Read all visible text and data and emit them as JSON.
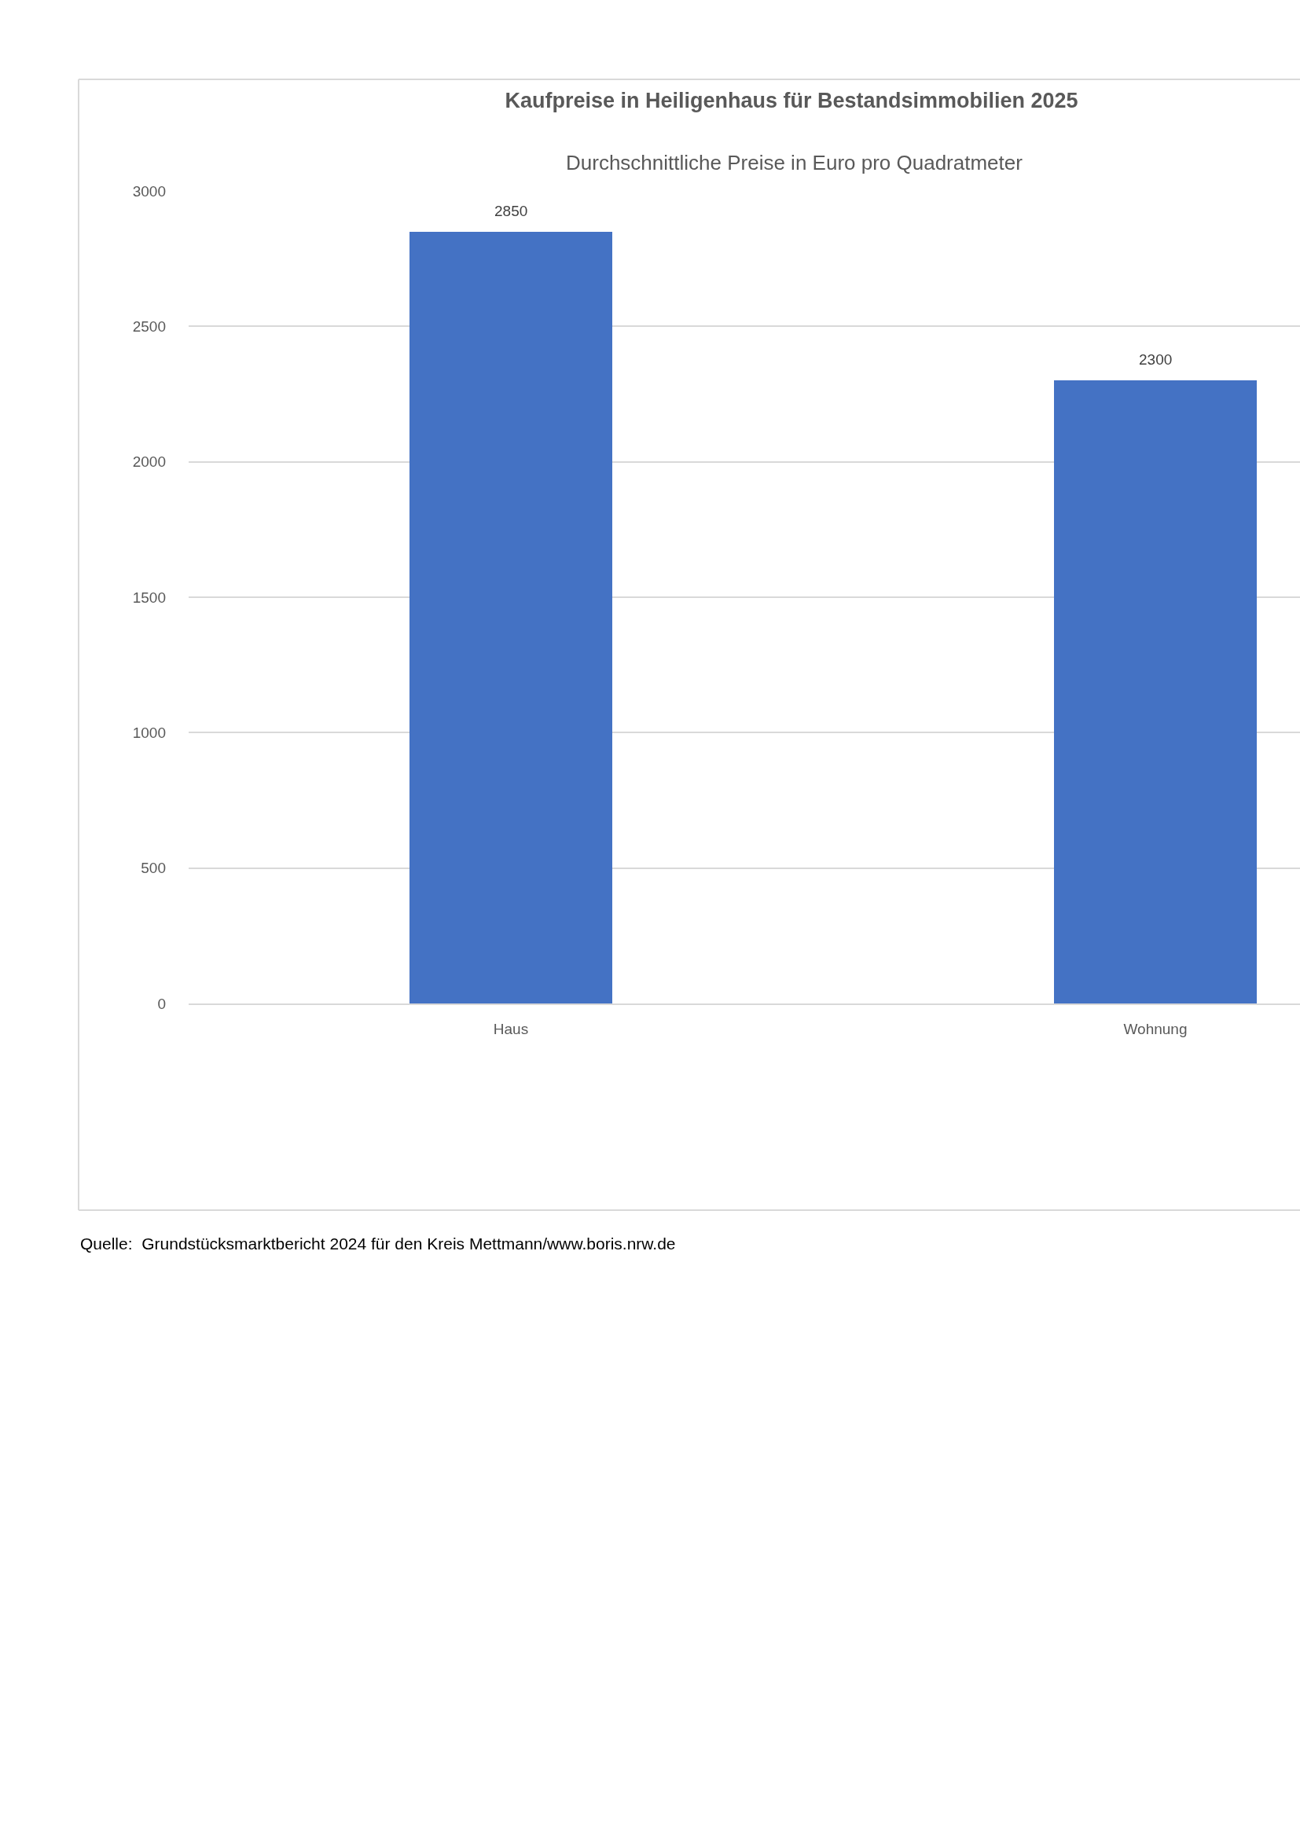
{
  "chart_data": {
    "type": "bar",
    "title": "Kaufpreise in Heiligenhaus für Bestandsimmobilien 2025",
    "subtitle": "Durchschnittliche Preise in Euro pro Quadratmeter",
    "categories": [
      "Haus",
      "Wohnung"
    ],
    "values": [
      2850,
      2300
    ],
    "color": "#4472c4",
    "ylim": [
      0,
      3000
    ],
    "yticks": [
      0,
      500,
      1000,
      1500,
      2000,
      2500,
      3000
    ],
    "grid": "y",
    "data_labels": true,
    "annotations": [
      "Quelle:  Grundstücksmarktbericht 2024 für den Kreis Mettmann/www.boris.nrw.de"
    ]
  }
}
